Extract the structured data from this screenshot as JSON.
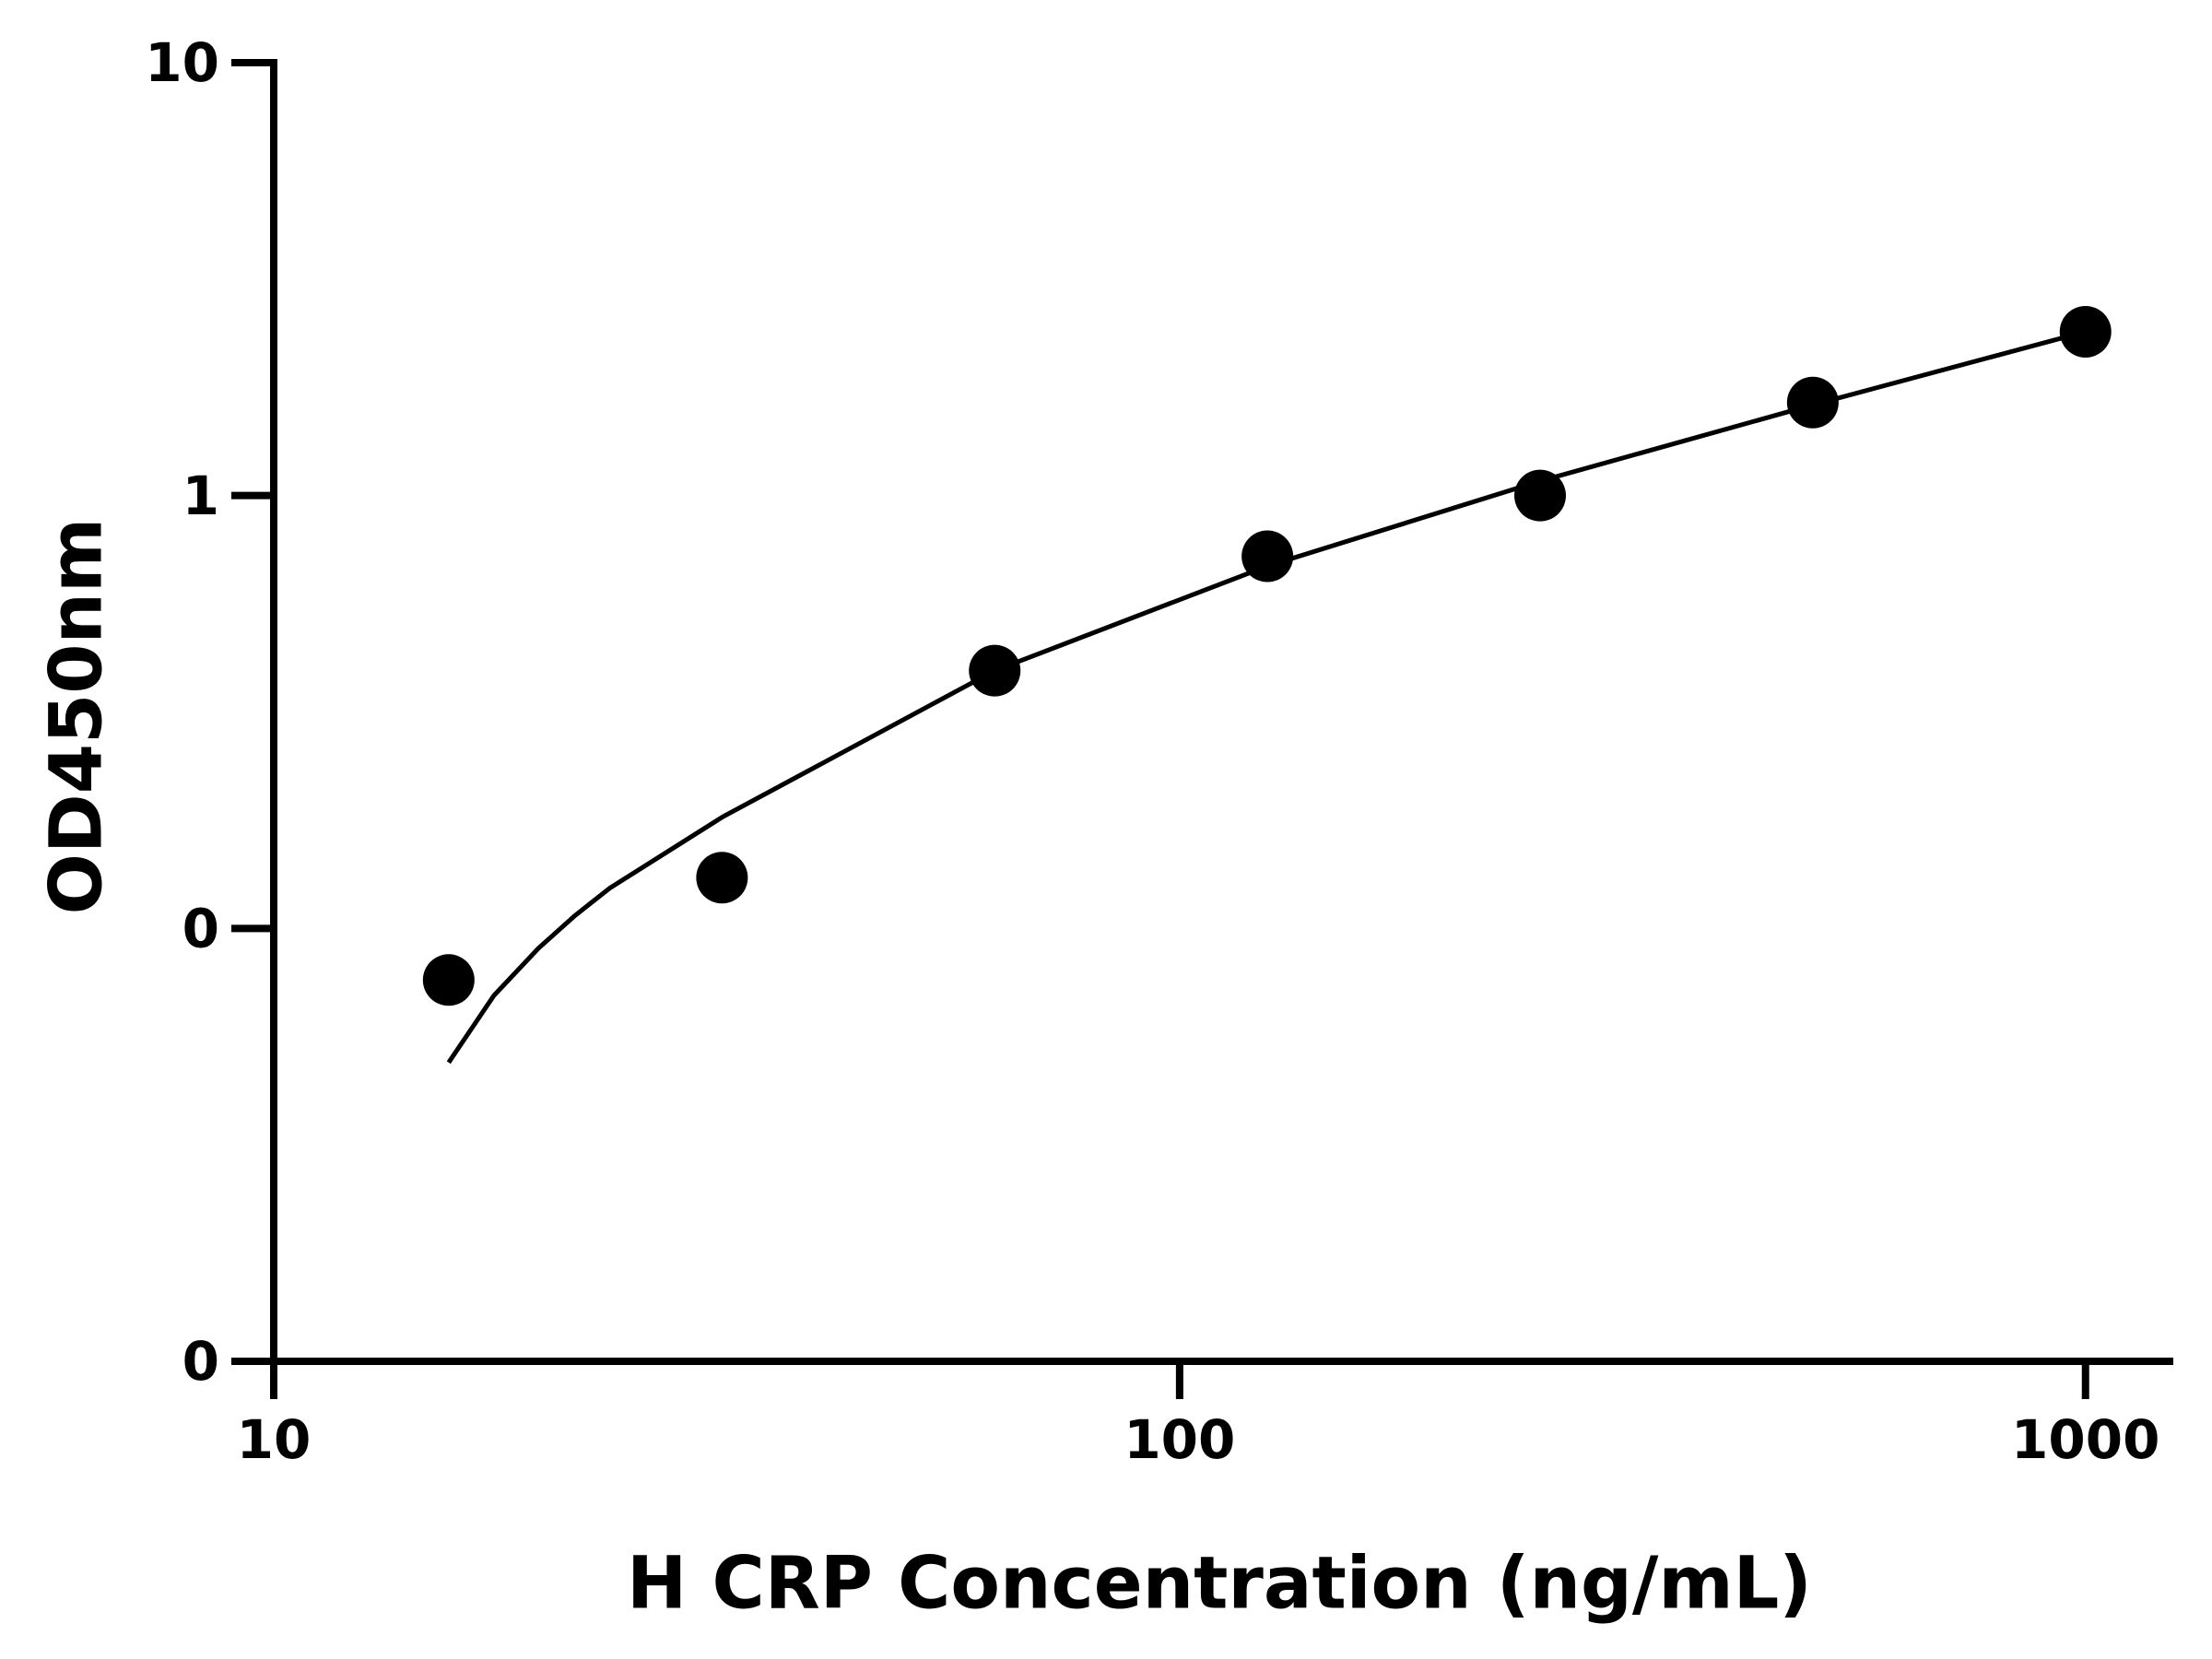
{
  "chart_data": {
    "type": "scatter",
    "x_label": "H CRP Concentration (ng/mL)",
    "y_label": "OD450nm",
    "x": [
      15.6,
      31.25,
      62.5,
      125,
      250,
      500,
      1000
    ],
    "values": [
      0.076,
      0.131,
      0.394,
      0.724,
      1.0,
      1.64,
      2.39
    ],
    "color": "#000000",
    "curve": {
      "x": [
        15.6,
        17.5,
        19.6,
        21.5,
        23.5,
        31.3,
        62.5,
        125,
        250,
        500,
        1000
      ],
      "values": [
        0.049,
        0.07,
        0.09,
        0.107,
        0.124,
        0.181,
        0.394,
        0.687,
        1.08,
        1.62,
        2.39
      ]
    },
    "xlim": [
      10,
      1250
    ],
    "ylim": [
      0.01,
      10
    ],
    "xticks": [
      10,
      100,
      1000
    ],
    "yticks": [
      {
        "value": 0.01,
        "label": "0"
      },
      {
        "value": 0.1,
        "label": "0"
      },
      1,
      10
    ],
    "log_x": true,
    "log_y": true,
    "grid": false
  }
}
